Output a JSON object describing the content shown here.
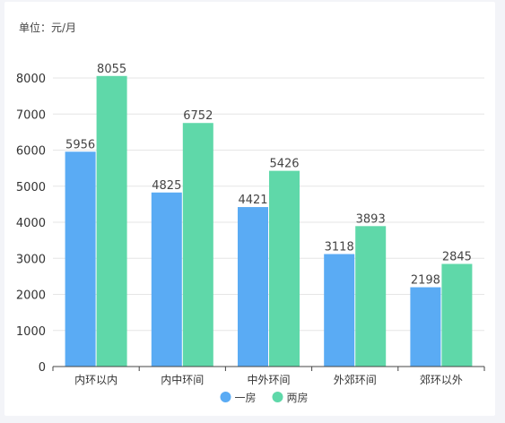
{
  "unit_label": "单位：元/月",
  "colors": {
    "series_1": "#5aabf4",
    "series_2": "#5fd8a9",
    "grid": "#e6e6e6",
    "axis": "#444444"
  },
  "chart_data": {
    "type": "bar",
    "title": "",
    "xlabel": "",
    "ylabel": "",
    "categories": [
      "内环以内",
      "内中环间",
      "中外环间",
      "外郊环间",
      "郊环以外"
    ],
    "series": [
      {
        "name": "一房",
        "values": [
          5956,
          4825,
          4421,
          3118,
          2198
        ]
      },
      {
        "name": "两房",
        "values": [
          8055,
          6752,
          5426,
          3893,
          2845
        ]
      }
    ],
    "ylim": [
      0,
      8000
    ],
    "yticks": [
      0,
      1000,
      2000,
      3000,
      4000,
      5000,
      6000,
      7000,
      8000
    ],
    "grid": true,
    "legend": "bottom-center",
    "data_labels": true
  }
}
